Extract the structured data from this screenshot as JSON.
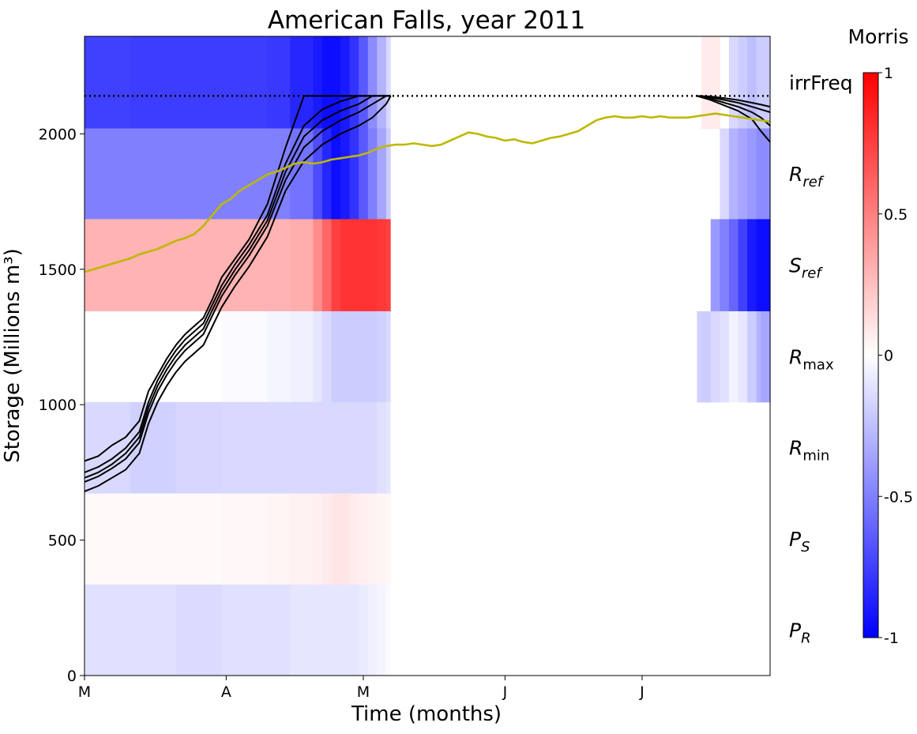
{
  "chart_data": {
    "type": "heatmap",
    "title": "American Falls, year 2011",
    "xlabel": "Time (months)",
    "ylabel": "Storage (Millions m³)",
    "x_ticks": [
      "M",
      "A",
      "M",
      "J",
      "J"
    ],
    "x_tick_days": [
      0,
      31,
      61,
      92,
      122
    ],
    "x_range": [
      0,
      150
    ],
    "y_ticks": [
      0,
      500,
      1000,
      1500,
      2000
    ],
    "ylim": [
      0,
      2360
    ],
    "grid": false,
    "parameters": [
      "irrFreq",
      "R_ref",
      "S_ref",
      "R_max",
      "R_min",
      "P_S",
      "P_R"
    ],
    "parameter_band_edges": [
      2360,
      2020,
      1685,
      1345,
      1010,
      672,
      336,
      0
    ],
    "heatmap_segments_days": [
      0,
      10,
      20,
      30,
      40,
      45,
      50,
      52,
      54,
      56,
      58,
      60,
      62,
      64,
      66,
      67,
      150
    ],
    "morris_values": [
      [
        -0.75,
        -0.76,
        -0.76,
        -0.76,
        -0.78,
        -0.85,
        -0.9,
        -0.95,
        -0.95,
        -0.9,
        -0.8,
        -0.65,
        -0.45,
        -0.3,
        -0.15,
        0.0
      ],
      [
        -0.5,
        -0.5,
        -0.5,
        -0.5,
        -0.5,
        -0.55,
        -0.7,
        -0.85,
        -0.95,
        -0.9,
        -0.8,
        -0.65,
        -0.5,
        -0.35,
        -0.2,
        0.0
      ],
      [
        0.3,
        0.3,
        0.3,
        0.3,
        0.3,
        0.32,
        0.45,
        0.6,
        0.75,
        0.8,
        0.8,
        0.8,
        0.8,
        0.78,
        0.75,
        0.0
      ],
      [
        0.0,
        0.0,
        0.0,
        -0.02,
        -0.04,
        -0.06,
        -0.1,
        -0.15,
        -0.2,
        -0.2,
        -0.2,
        -0.2,
        -0.2,
        -0.18,
        -0.15,
        0.0
      ],
      [
        -0.15,
        -0.18,
        -0.16,
        -0.15,
        -0.15,
        -0.15,
        -0.15,
        -0.15,
        -0.15,
        -0.15,
        -0.15,
        -0.15,
        -0.15,
        -0.12,
        -0.1,
        0.0
      ],
      [
        0.02,
        0.02,
        0.02,
        0.03,
        0.04,
        0.05,
        0.06,
        0.08,
        0.1,
        0.1,
        0.08,
        0.06,
        0.05,
        0.04,
        0.03,
        0.0
      ],
      [
        -0.12,
        -0.12,
        -0.14,
        -0.12,
        -0.12,
        -0.1,
        -0.1,
        -0.1,
        -0.1,
        -0.1,
        -0.1,
        -0.08,
        -0.06,
        -0.04,
        -0.02,
        0.0
      ]
    ],
    "late_segments_days": [
      134,
      135,
      137,
      139,
      141,
      143,
      145,
      147,
      148,
      150
    ],
    "late_morris_values": [
      [
        0.0,
        0.08,
        0.08,
        0.0,
        -0.15,
        -0.2,
        -0.25,
        -0.2,
        -0.2
      ],
      [
        0.0,
        0.0,
        0.0,
        -0.15,
        -0.3,
        -0.35,
        -0.4,
        -0.45,
        -0.45
      ],
      [
        0.0,
        0.0,
        -0.4,
        -0.5,
        -0.6,
        -0.75,
        -0.9,
        -0.95,
        -0.95
      ],
      [
        -0.18,
        -0.2,
        -0.15,
        -0.12,
        -0.05,
        -0.1,
        -0.2,
        -0.3,
        -0.35
      ],
      [
        0,
        0,
        0,
        0,
        0,
        0,
        0,
        0,
        0
      ],
      [
        0,
        0,
        0,
        0,
        0,
        0,
        0,
        0,
        0
      ],
      [
        0,
        0,
        0,
        0,
        0,
        0,
        0,
        0,
        0
      ]
    ],
    "capacity_line_y": 2140,
    "series": [
      {
        "color": "#000000",
        "x": [
          0,
          3,
          6,
          9,
          12,
          14,
          16,
          18,
          20,
          22,
          24,
          26,
          28,
          30,
          33,
          36,
          40,
          44,
          48,
          50,
          52,
          53,
          54,
          56,
          60,
          63,
          66,
          67
        ],
        "y": [
          792,
          810,
          850,
          880,
          940,
          1050,
          1110,
          1170,
          1220,
          1260,
          1290,
          1320,
          1390,
          1470,
          1540,
          1610,
          1740,
          1950,
          2140,
          2140,
          2140,
          2140,
          2140,
          2140,
          2140,
          2140,
          2140,
          2140
        ]
      },
      {
        "color": "#000000",
        "x": [
          0,
          3,
          6,
          9,
          12,
          14,
          16,
          18,
          20,
          22,
          24,
          26,
          28,
          30,
          33,
          36,
          40,
          44,
          48,
          52,
          56,
          60,
          63,
          66,
          67
        ],
        "y": [
          750,
          770,
          800,
          840,
          900,
          1010,
          1090,
          1150,
          1200,
          1240,
          1270,
          1300,
          1370,
          1440,
          1520,
          1590,
          1700,
          1890,
          2030,
          2090,
          2120,
          2140,
          2140,
          2140,
          2140
        ]
      },
      {
        "color": "#000000",
        "x": [
          0,
          3,
          6,
          9,
          12,
          14,
          16,
          18,
          20,
          22,
          24,
          26,
          28,
          30,
          33,
          36,
          40,
          44,
          48,
          52,
          56,
          60,
          63,
          66,
          67
        ],
        "y": [
          730,
          750,
          780,
          820,
          880,
          990,
          1070,
          1130,
          1180,
          1220,
          1250,
          1280,
          1350,
          1420,
          1500,
          1570,
          1680,
          1860,
          1990,
          2050,
          2085,
          2110,
          2140,
          2140,
          2140
        ]
      },
      {
        "color": "#000000",
        "x": [
          0,
          3,
          6,
          9,
          12,
          14,
          16,
          18,
          20,
          22,
          24,
          26,
          28,
          30,
          33,
          36,
          40,
          44,
          48,
          52,
          56,
          60,
          63,
          66,
          67
        ],
        "y": [
          715,
          735,
          765,
          800,
          860,
          970,
          1050,
          1110,
          1160,
          1200,
          1230,
          1260,
          1330,
          1400,
          1480,
          1550,
          1660,
          1830,
          1950,
          2010,
          2050,
          2080,
          2110,
          2140,
          2140
        ]
      },
      {
        "color": "#000000",
        "x": [
          0,
          3,
          6,
          9,
          12,
          14,
          16,
          18,
          20,
          22,
          24,
          26,
          28,
          30,
          33,
          36,
          40,
          44,
          48,
          52,
          56,
          60,
          63,
          66,
          67
        ],
        "y": [
          680,
          700,
          730,
          760,
          820,
          930,
          1010,
          1070,
          1120,
          1160,
          1190,
          1220,
          1290,
          1360,
          1440,
          1510,
          1620,
          1790,
          1900,
          1960,
          2000,
          2030,
          2060,
          2110,
          2140
        ]
      },
      {
        "color": "#000000",
        "x": [
          134,
          137,
          140,
          143,
          146,
          148,
          150
        ],
        "y": [
          2140,
          2138,
          2132,
          2125,
          2115,
          2108,
          2100
        ]
      },
      {
        "color": "#000000",
        "x": [
          134,
          137,
          140,
          143,
          146,
          148,
          150
        ],
        "y": [
          2140,
          2135,
          2125,
          2115,
          2100,
          2090,
          2080
        ]
      },
      {
        "color": "#000000",
        "x": [
          134,
          137,
          140,
          143,
          146,
          148,
          150
        ],
        "y": [
          2140,
          2130,
          2115,
          2100,
          2080,
          2060,
          2030
        ]
      },
      {
        "color": "#000000",
        "x": [
          134,
          137,
          140,
          143,
          146,
          148,
          150
        ],
        "y": [
          2140,
          2125,
          2105,
          2085,
          2055,
          2010,
          1970
        ]
      },
      {
        "color": "#bdb800",
        "x": [
          0,
          2,
          4,
          6,
          8,
          10,
          12,
          14,
          16,
          18,
          20,
          22,
          24,
          26,
          28,
          30,
          32,
          34,
          36,
          38,
          40,
          42,
          44,
          46,
          48,
          50,
          52,
          54,
          56,
          58,
          60,
          62,
          64,
          66,
          68,
          70,
          72,
          74,
          76,
          78,
          80,
          82,
          84,
          86,
          88,
          90,
          92,
          94,
          96,
          98,
          100,
          102,
          104,
          106,
          108,
          110,
          112,
          114,
          116,
          118,
          120,
          122,
          124,
          126,
          128,
          130,
          132,
          134,
          136,
          138,
          140,
          142,
          144,
          146,
          148,
          150
        ],
        "y": [
          1490,
          1500,
          1510,
          1520,
          1530,
          1540,
          1555,
          1565,
          1575,
          1590,
          1605,
          1615,
          1630,
          1660,
          1700,
          1740,
          1760,
          1790,
          1810,
          1830,
          1850,
          1860,
          1875,
          1890,
          1895,
          1890,
          1895,
          1905,
          1910,
          1915,
          1920,
          1930,
          1945,
          1955,
          1960,
          1960,
          1965,
          1960,
          1955,
          1960,
          1975,
          1990,
          2005,
          2000,
          1990,
          1985,
          1975,
          1980,
          1970,
          1965,
          1975,
          1985,
          1990,
          2000,
          2010,
          2030,
          2050,
          2060,
          2065,
          2060,
          2060,
          2065,
          2060,
          2065,
          2060,
          2060,
          2060,
          2065,
          2070,
          2075,
          2070,
          2065,
          2060,
          2055,
          2050,
          2045
        ]
      }
    ],
    "colorbar": {
      "label": "Morris",
      "ticks": [
        "1",
        "0.5",
        "0",
        "-0.5",
        "-1"
      ],
      "tick_values": [
        1,
        0.5,
        0,
        -0.5,
        -1
      ],
      "range": [
        -1,
        1
      ],
      "colormap": "bwr",
      "min_color": "#0000ff",
      "mid_color": "#ffffff",
      "max_color": "#ff0000"
    }
  }
}
